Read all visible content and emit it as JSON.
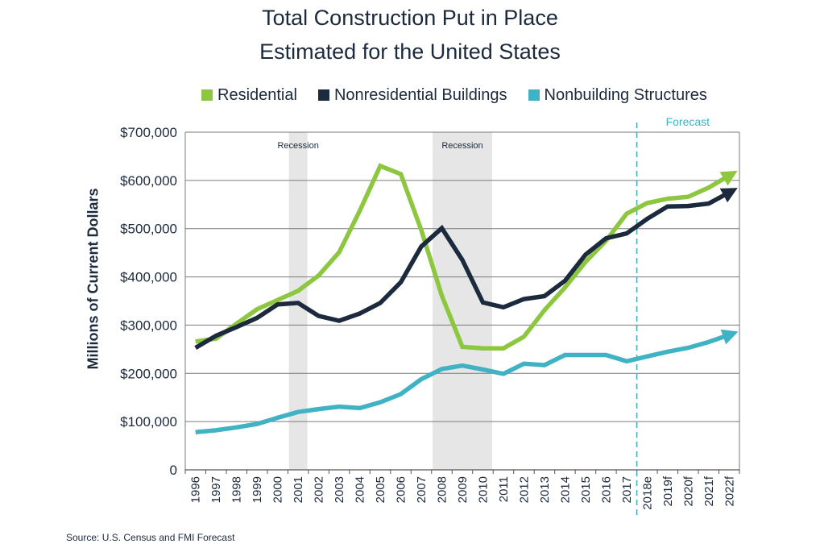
{
  "colors": {
    "residential": "#8dc63f",
    "nonresidential": "#1b2a3d",
    "nonbuilding": "#3fb2c4",
    "recession_shade": "#e6e6e6",
    "forecast_line": "#3fb2c4"
  },
  "chart_data": {
    "type": "line",
    "title": "Total Construction Put in Place",
    "subtitle": "Estimated for the United States",
    "ylabel": "Millions of Current Dollars",
    "xlabel": "",
    "ylim": [
      0,
      700000
    ],
    "yticks": [
      "0",
      "$100,000",
      "$200,000",
      "$300,000",
      "$400,000",
      "$500,000",
      "$600,000",
      "$700,000"
    ],
    "ytick_values": [
      0,
      100000,
      200000,
      300000,
      400000,
      500000,
      600000,
      700000
    ],
    "grid": true,
    "legend_position": "top",
    "categories": [
      "1996",
      "1997",
      "1998",
      "1999",
      "2000",
      "2001",
      "2002",
      "2003",
      "2004",
      "2005",
      "2006",
      "2007",
      "2008",
      "2009",
      "2010",
      "2011",
      "2012",
      "2013",
      "2014",
      "2015",
      "2016",
      "2017",
      "2018e",
      "2019f",
      "2020f",
      "2021f",
      "2022f"
    ],
    "series": [
      {
        "name": "Residential",
        "color_key": "residential",
        "values": [
          266000,
          272000,
          303000,
          333000,
          352000,
          371000,
          403000,
          451000,
          537000,
          630000,
          613000,
          497000,
          361000,
          255000,
          252000,
          252000,
          276000,
          331000,
          378000,
          431000,
          475000,
          531000,
          553000,
          562000,
          566000,
          585000,
          610000
        ]
      },
      {
        "name": "Nonresidential Buildings",
        "color_key": "nonresidential",
        "values": [
          253000,
          278000,
          296000,
          315000,
          343000,
          346000,
          319000,
          309000,
          324000,
          346000,
          389000,
          463000,
          501000,
          435000,
          347000,
          337000,
          354000,
          360000,
          392000,
          446000,
          480000,
          490000,
          520000,
          546000,
          547000,
          552000,
          575000
        ]
      },
      {
        "name": "Nonbuilding Structures",
        "color_key": "nonbuilding",
        "values": [
          78000,
          82000,
          88000,
          95000,
          108000,
          120000,
          126000,
          131000,
          128000,
          140000,
          157000,
          188000,
          209000,
          216000,
          208000,
          199000,
          220000,
          217000,
          238000,
          238000,
          238000,
          225000,
          235000,
          245000,
          253000,
          265000,
          280000
        ]
      }
    ],
    "shaded_regions": [
      {
        "label": "Recession",
        "x_start": "2001",
        "x_end": "2001"
      },
      {
        "label": "Recession",
        "x_start": "2008",
        "x_end": "2010"
      }
    ],
    "forecast_divider": {
      "label": "Forecast",
      "after": "2017"
    }
  },
  "source_text": "Source: U.S. Census and FMI Forecast"
}
